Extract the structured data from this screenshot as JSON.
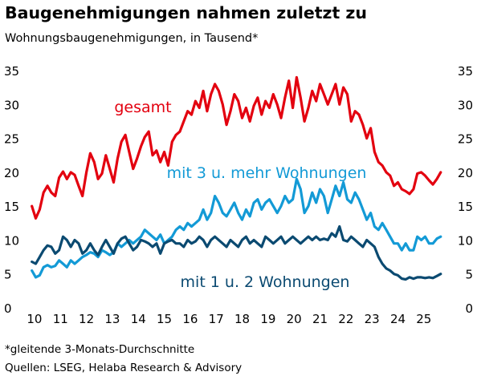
{
  "title": "Baugenehmigungen nahmen zuletzt zu",
  "subtitle": "Wohnungsbaugenehmigungen, in Tausend*",
  "footnotes": [
    "*gleitende 3-Monats-Durchschnitte",
    "Quellen: LSEG, Helaba Research & Advisory"
  ],
  "chart_data": {
    "type": "line",
    "ylim": [
      0,
      35
    ],
    "yticks": [
      0,
      5,
      10,
      15,
      20,
      25,
      30,
      35
    ],
    "xlim": [
      2009.6,
      2026.15
    ],
    "xticks": [
      2010,
      2011,
      2012,
      2013,
      2014,
      2015,
      2016,
      2017,
      2018,
      2019,
      2020,
      2021,
      2022,
      2023,
      2024,
      2025
    ],
    "xticklabels": [
      "10",
      "11",
      "12",
      "13",
      "14",
      "15",
      "16",
      "17",
      "18",
      "19",
      "20",
      "21",
      "22",
      "23",
      "24",
      "25"
    ],
    "grid": false,
    "series": [
      {
        "name": "gesamt",
        "color": "#e3000f",
        "x": [
          2009.9,
          2010.05,
          2010.2,
          2010.35,
          2010.5,
          2010.65,
          2010.8,
          2010.95,
          2011.1,
          2011.25,
          2011.4,
          2011.55,
          2011.7,
          2011.85,
          2012.0,
          2012.15,
          2012.3,
          2012.45,
          2012.6,
          2012.75,
          2012.9,
          2013.05,
          2013.2,
          2013.35,
          2013.5,
          2013.65,
          2013.8,
          2013.95,
          2014.1,
          2014.25,
          2014.4,
          2014.55,
          2014.7,
          2014.85,
          2015.0,
          2015.15,
          2015.3,
          2015.45,
          2015.6,
          2015.75,
          2015.9,
          2016.05,
          2016.2,
          2016.35,
          2016.5,
          2016.65,
          2016.8,
          2016.95,
          2017.1,
          2017.25,
          2017.4,
          2017.55,
          2017.7,
          2017.85,
          2018.0,
          2018.15,
          2018.3,
          2018.45,
          2018.6,
          2018.75,
          2018.9,
          2019.05,
          2019.2,
          2019.35,
          2019.5,
          2019.65,
          2019.8,
          2019.95,
          2020.1,
          2020.25,
          2020.4,
          2020.55,
          2020.7,
          2020.85,
          2021.0,
          2021.15,
          2021.3,
          2021.45,
          2021.6,
          2021.75,
          2021.9,
          2022.05,
          2022.2,
          2022.35,
          2022.5,
          2022.65,
          2022.8,
          2022.95,
          2023.1,
          2023.25,
          2023.4,
          2023.55,
          2023.7,
          2023.85,
          2024.0,
          2024.15,
          2024.3,
          2024.45,
          2024.6,
          2024.75,
          2024.9,
          2025.05,
          2025.2,
          2025.35,
          2025.5,
          2025.65
        ],
        "values": [
          15.0,
          13.2,
          14.5,
          17.0,
          18.0,
          17.0,
          16.5,
          19.2,
          20.1,
          19.0,
          20.0,
          19.6,
          18.0,
          16.5,
          20.0,
          22.8,
          21.5,
          19.0,
          19.8,
          22.5,
          20.5,
          18.5,
          22.0,
          24.5,
          25.5,
          23.0,
          20.5,
          22.0,
          23.8,
          25.2,
          26.0,
          22.5,
          23.2,
          21.5,
          23.0,
          21.0,
          24.5,
          25.5,
          26.0,
          27.5,
          29.0,
          28.5,
          30.5,
          29.5,
          32.0,
          29.0,
          31.5,
          33.0,
          32.0,
          30.0,
          27.0,
          29.0,
          31.5,
          30.5,
          28.0,
          29.5,
          27.5,
          29.8,
          31.0,
          28.5,
          30.5,
          29.5,
          31.5,
          30.0,
          28.0,
          31.0,
          33.5,
          29.5,
          34.0,
          31.0,
          27.5,
          29.5,
          32.0,
          30.5,
          33.0,
          31.5,
          30.0,
          31.5,
          33.0,
          30.0,
          32.5,
          31.5,
          27.5,
          29.0,
          28.5,
          27.0,
          25.0,
          26.5,
          23.0,
          21.5,
          21.0,
          20.0,
          19.5,
          18.0,
          18.5,
          17.5,
          17.2,
          16.8,
          17.5,
          19.8,
          20.0,
          19.5,
          18.8,
          18.2,
          19.0,
          20.0
        ]
      },
      {
        "name": "mit 3 u. mehr Wohnungen",
        "color": "#139ad6",
        "x": [
          2009.9,
          2010.05,
          2010.2,
          2010.35,
          2010.5,
          2010.65,
          2010.8,
          2010.95,
          2011.1,
          2011.25,
          2011.4,
          2011.55,
          2011.7,
          2011.85,
          2012.0,
          2012.15,
          2012.3,
          2012.45,
          2012.6,
          2012.75,
          2012.9,
          2013.05,
          2013.2,
          2013.35,
          2013.5,
          2013.65,
          2013.8,
          2013.95,
          2014.1,
          2014.25,
          2014.4,
          2014.55,
          2014.7,
          2014.85,
          2015.0,
          2015.15,
          2015.3,
          2015.45,
          2015.6,
          2015.75,
          2015.9,
          2016.05,
          2016.2,
          2016.35,
          2016.5,
          2016.65,
          2016.8,
          2016.95,
          2017.1,
          2017.25,
          2017.4,
          2017.55,
          2017.7,
          2017.85,
          2018.0,
          2018.15,
          2018.3,
          2018.45,
          2018.6,
          2018.75,
          2018.9,
          2019.05,
          2019.2,
          2019.35,
          2019.5,
          2019.65,
          2019.8,
          2019.95,
          2020.1,
          2020.25,
          2020.4,
          2020.55,
          2020.7,
          2020.85,
          2021.0,
          2021.15,
          2021.3,
          2021.45,
          2021.6,
          2021.75,
          2021.9,
          2022.05,
          2022.2,
          2022.35,
          2022.5,
          2022.65,
          2022.8,
          2022.95,
          2023.1,
          2023.25,
          2023.4,
          2023.55,
          2023.7,
          2023.85,
          2024.0,
          2024.15,
          2024.3,
          2024.45,
          2024.6,
          2024.75,
          2024.9,
          2025.05,
          2025.2,
          2025.35,
          2025.5,
          2025.65
        ],
        "values": [
          5.5,
          4.5,
          4.8,
          6.0,
          6.3,
          6.0,
          6.2,
          7.0,
          6.5,
          6.0,
          7.0,
          6.5,
          7.0,
          7.5,
          7.8,
          8.2,
          8.0,
          7.5,
          8.5,
          8.2,
          7.8,
          8.2,
          9.5,
          9.0,
          9.5,
          10.0,
          9.5,
          10.0,
          10.5,
          11.5,
          11.0,
          10.5,
          10.0,
          10.8,
          9.5,
          10.0,
          10.5,
          11.5,
          12.0,
          11.5,
          12.5,
          12.0,
          12.5,
          13.0,
          14.5,
          13.0,
          14.0,
          16.5,
          15.5,
          14.0,
          13.5,
          14.5,
          15.5,
          14.0,
          13.0,
          14.5,
          13.5,
          15.5,
          16.0,
          14.5,
          15.5,
          16.0,
          15.0,
          14.0,
          15.0,
          16.5,
          15.5,
          16.0,
          19.0,
          17.5,
          14.0,
          15.0,
          17.0,
          15.5,
          17.5,
          16.5,
          14.0,
          16.0,
          18.0,
          16.5,
          18.5,
          16.0,
          15.5,
          17.0,
          16.0,
          14.5,
          13.0,
          14.0,
          12.0,
          11.5,
          12.5,
          11.5,
          10.5,
          9.5,
          9.5,
          8.5,
          9.5,
          8.5,
          8.5,
          10.5,
          10.0,
          10.5,
          9.5,
          9.5,
          10.2,
          10.5
        ]
      },
      {
        "name": "mit 1 u. 2 Wohnungen",
        "color": "#0b4a71",
        "x": [
          2009.9,
          2010.05,
          2010.2,
          2010.35,
          2010.5,
          2010.65,
          2010.8,
          2010.95,
          2011.1,
          2011.25,
          2011.4,
          2011.55,
          2011.7,
          2011.85,
          2012.0,
          2012.15,
          2012.3,
          2012.45,
          2012.6,
          2012.75,
          2012.9,
          2013.05,
          2013.2,
          2013.35,
          2013.5,
          2013.65,
          2013.8,
          2013.95,
          2014.1,
          2014.25,
          2014.4,
          2014.55,
          2014.7,
          2014.85,
          2015.0,
          2015.15,
          2015.3,
          2015.45,
          2015.6,
          2015.75,
          2015.9,
          2016.05,
          2016.2,
          2016.35,
          2016.5,
          2016.65,
          2016.8,
          2016.95,
          2017.1,
          2017.25,
          2017.4,
          2017.55,
          2017.7,
          2017.85,
          2018.0,
          2018.15,
          2018.3,
          2018.45,
          2018.6,
          2018.75,
          2018.9,
          2019.05,
          2019.2,
          2019.35,
          2019.5,
          2019.65,
          2019.8,
          2019.95,
          2020.1,
          2020.25,
          2020.4,
          2020.55,
          2020.7,
          2020.85,
          2021.0,
          2021.15,
          2021.3,
          2021.45,
          2021.6,
          2021.75,
          2021.9,
          2022.05,
          2022.2,
          2022.35,
          2022.5,
          2022.65,
          2022.8,
          2022.95,
          2023.1,
          2023.25,
          2023.4,
          2023.55,
          2023.7,
          2023.85,
          2024.0,
          2024.15,
          2024.3,
          2024.45,
          2024.6,
          2024.75,
          2024.9,
          2025.05,
          2025.2,
          2025.35,
          2025.5,
          2025.65
        ],
        "values": [
          6.8,
          6.5,
          7.5,
          8.5,
          9.2,
          9.0,
          8.0,
          8.5,
          10.5,
          10.0,
          9.0,
          10.0,
          9.5,
          8.0,
          8.5,
          9.5,
          8.5,
          7.8,
          9.0,
          10.0,
          9.0,
          8.0,
          9.5,
          10.2,
          10.5,
          9.5,
          8.5,
          9.0,
          10.0,
          9.8,
          9.5,
          9.0,
          9.5,
          8.0,
          9.5,
          9.8,
          10.0,
          9.5,
          9.5,
          9.0,
          10.0,
          9.5,
          9.8,
          10.5,
          10.0,
          9.0,
          10.0,
          10.5,
          10.0,
          9.5,
          9.0,
          10.0,
          9.5,
          9.0,
          10.0,
          10.5,
          9.5,
          10.0,
          9.5,
          9.0,
          10.5,
          10.0,
          9.5,
          10.0,
          10.5,
          9.5,
          10.0,
          10.5,
          10.0,
          9.5,
          10.0,
          10.5,
          10.0,
          10.5,
          10.0,
          10.2,
          10.0,
          11.0,
          10.5,
          12.0,
          10.0,
          9.8,
          10.5,
          10.0,
          9.5,
          9.0,
          10.0,
          9.5,
          9.0,
          7.5,
          6.5,
          5.8,
          5.5,
          5.0,
          4.8,
          4.3,
          4.2,
          4.5,
          4.3,
          4.5,
          4.5,
          4.4,
          4.5,
          4.4,
          4.7,
          5.0
        ]
      }
    ]
  }
}
